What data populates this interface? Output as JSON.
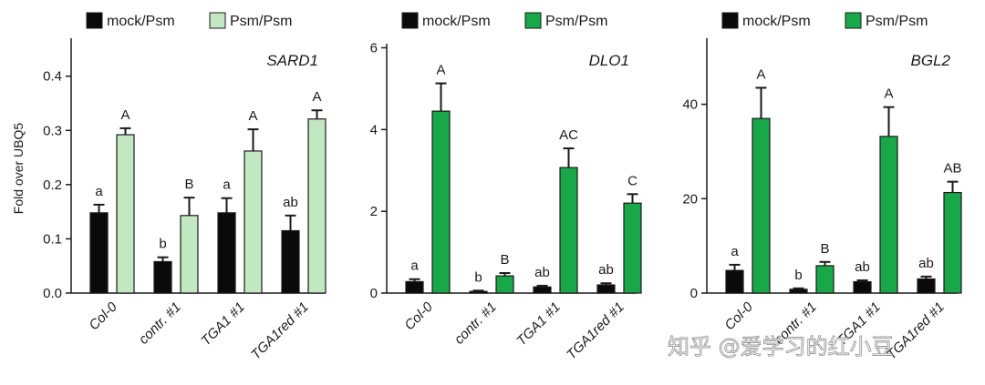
{
  "colors": {
    "mock": "#0a0a0a",
    "light_green": "#c2e8c2",
    "dark_green": "#18a84a",
    "axis": "#1a1a1a"
  },
  "chart_data": [
    {
      "type": "bar",
      "title": "SARD1",
      "ylabel": "Fold over UBQ5",
      "ylim": [
        0,
        0.47
      ],
      "yticks": [
        0.0,
        0.1,
        0.2,
        0.3,
        0.4
      ],
      "ytick_labels": [
        "0.0",
        "0.1",
        "0.2",
        "0.3",
        "0.4"
      ],
      "categories": [
        "Col-0",
        "contr. #1",
        "TGA1 #1",
        "TGA1red #1"
      ],
      "legend": [
        "mock/Psm",
        "Psm/Psm"
      ],
      "series": [
        {
          "name": "mock/Psm",
          "color": "mock",
          "values": [
            0.148,
            0.058,
            0.148,
            0.115
          ],
          "errors": [
            0.015,
            0.008,
            0.027,
            0.028
          ],
          "letters": [
            "a",
            "b",
            "a",
            "ab"
          ]
        },
        {
          "name": "Psm/Psm",
          "color": "light_green",
          "values": [
            0.292,
            0.143,
            0.262,
            0.321
          ],
          "errors": [
            0.012,
            0.033,
            0.04,
            0.016
          ],
          "letters": [
            "A",
            "B",
            "A",
            "A"
          ]
        }
      ]
    },
    {
      "type": "bar",
      "title": "DLO1",
      "ylabel": "",
      "ylim": [
        0,
        6.1
      ],
      "yticks": [
        0,
        2,
        4,
        6
      ],
      "ytick_labels": [
        "0",
        "2",
        "4",
        "6"
      ],
      "categories": [
        "Col-0",
        "contr. #1",
        "TGA1 #1",
        "TGA1red #1"
      ],
      "legend": [
        "mock/Psm",
        "Psm/Psm"
      ],
      "series": [
        {
          "name": "mock/Psm",
          "color": "mock",
          "values": [
            0.28,
            0.04,
            0.15,
            0.2
          ],
          "errors": [
            0.06,
            0.02,
            0.03,
            0.04
          ],
          "letters": [
            "a",
            "b",
            "ab",
            "ab"
          ]
        },
        {
          "name": "Psm/Psm",
          "color": "dark_green",
          "values": [
            4.45,
            0.42,
            3.07,
            2.2
          ],
          "errors": [
            0.68,
            0.07,
            0.47,
            0.22
          ],
          "letters": [
            "A",
            "B",
            "AC",
            "C"
          ]
        }
      ]
    },
    {
      "type": "bar",
      "title": "BGL2",
      "ylabel": "",
      "ylim": [
        0,
        54
      ],
      "yticks": [
        0,
        20,
        40
      ],
      "ytick_labels": [
        "0",
        "20",
        "40"
      ],
      "categories": [
        "Col-0",
        "contr. #1",
        "TGA1 #1",
        "TGA1red #1"
      ],
      "legend": [
        "mock/Psm",
        "Psm/Psm"
      ],
      "series": [
        {
          "name": "mock/Psm",
          "color": "mock",
          "values": [
            4.8,
            0.8,
            2.4,
            3.0
          ],
          "errors": [
            1.2,
            0.2,
            0.3,
            0.5
          ],
          "letters": [
            "a",
            "b",
            "ab",
            "ab"
          ]
        },
        {
          "name": "Psm/Psm",
          "color": "dark_green",
          "values": [
            37.0,
            5.8,
            33.2,
            21.3
          ],
          "errors": [
            6.5,
            0.8,
            6.2,
            2.3
          ],
          "letters": [
            "A",
            "B",
            "A",
            "AB"
          ]
        }
      ]
    }
  ],
  "watermark": "知乎 @爱学习的红小豆"
}
